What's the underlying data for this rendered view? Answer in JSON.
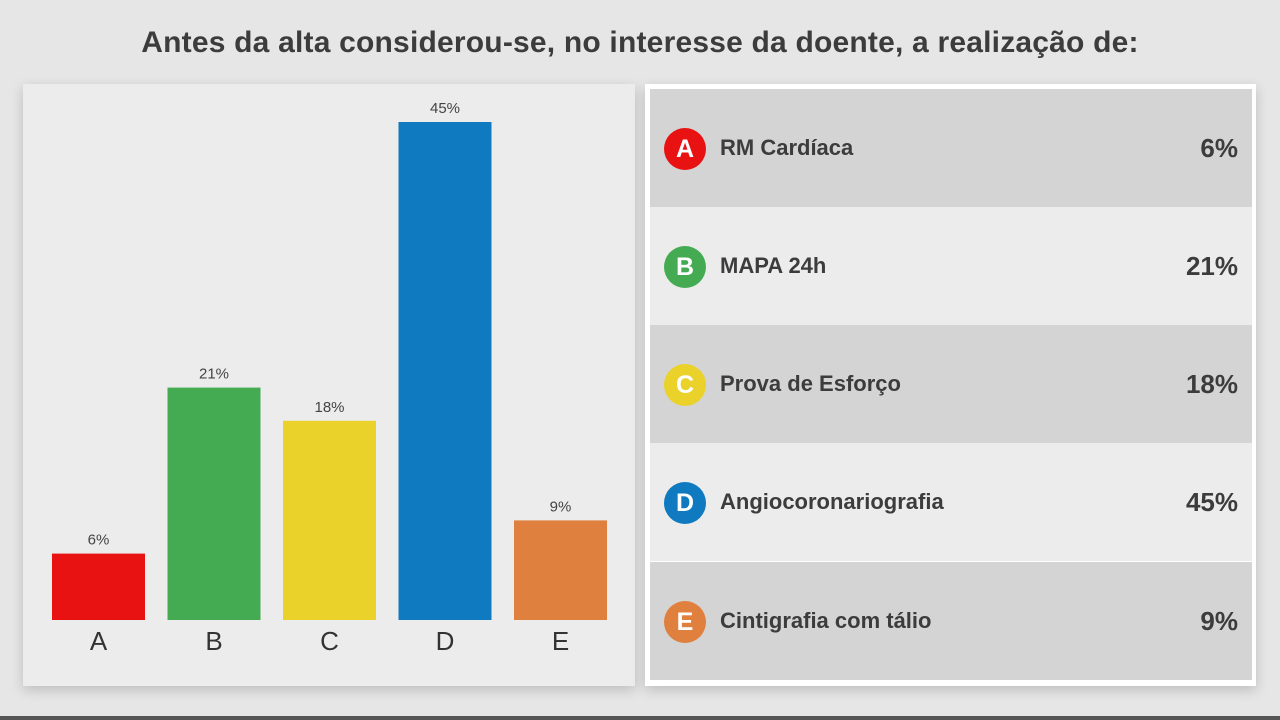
{
  "title": "Antes da alta considerou-se, no interesse da doente, a realização de:",
  "chart_data": {
    "type": "bar",
    "categories": [
      "A",
      "B",
      "C",
      "D",
      "E"
    ],
    "values": [
      6,
      21,
      18,
      45,
      9
    ],
    "data_labels": [
      "6%",
      "21%",
      "18%",
      "45%",
      "9%"
    ],
    "colors": [
      "#e81213",
      "#44ab52",
      "#ead22a",
      "#0f7ac0",
      "#e0803e"
    ],
    "ylim": [
      0,
      45
    ],
    "grid": false,
    "legend": "none"
  },
  "options": [
    {
      "letter": "A",
      "text": "RM Cardíaca",
      "pct": "6%",
      "color": "#e81213"
    },
    {
      "letter": "B",
      "text": "MAPA 24h",
      "pct": "21%",
      "color": "#44ab52"
    },
    {
      "letter": "C",
      "text": "Prova de Esforço",
      "pct": "18%",
      "color": "#ead22a"
    },
    {
      "letter": "D",
      "text": "Angiocoronariografia",
      "pct": "45%",
      "color": "#0f7ac0"
    },
    {
      "letter": "E",
      "text": "Cintigrafia com tálio",
      "pct": "9%",
      "color": "#e0803e"
    }
  ]
}
